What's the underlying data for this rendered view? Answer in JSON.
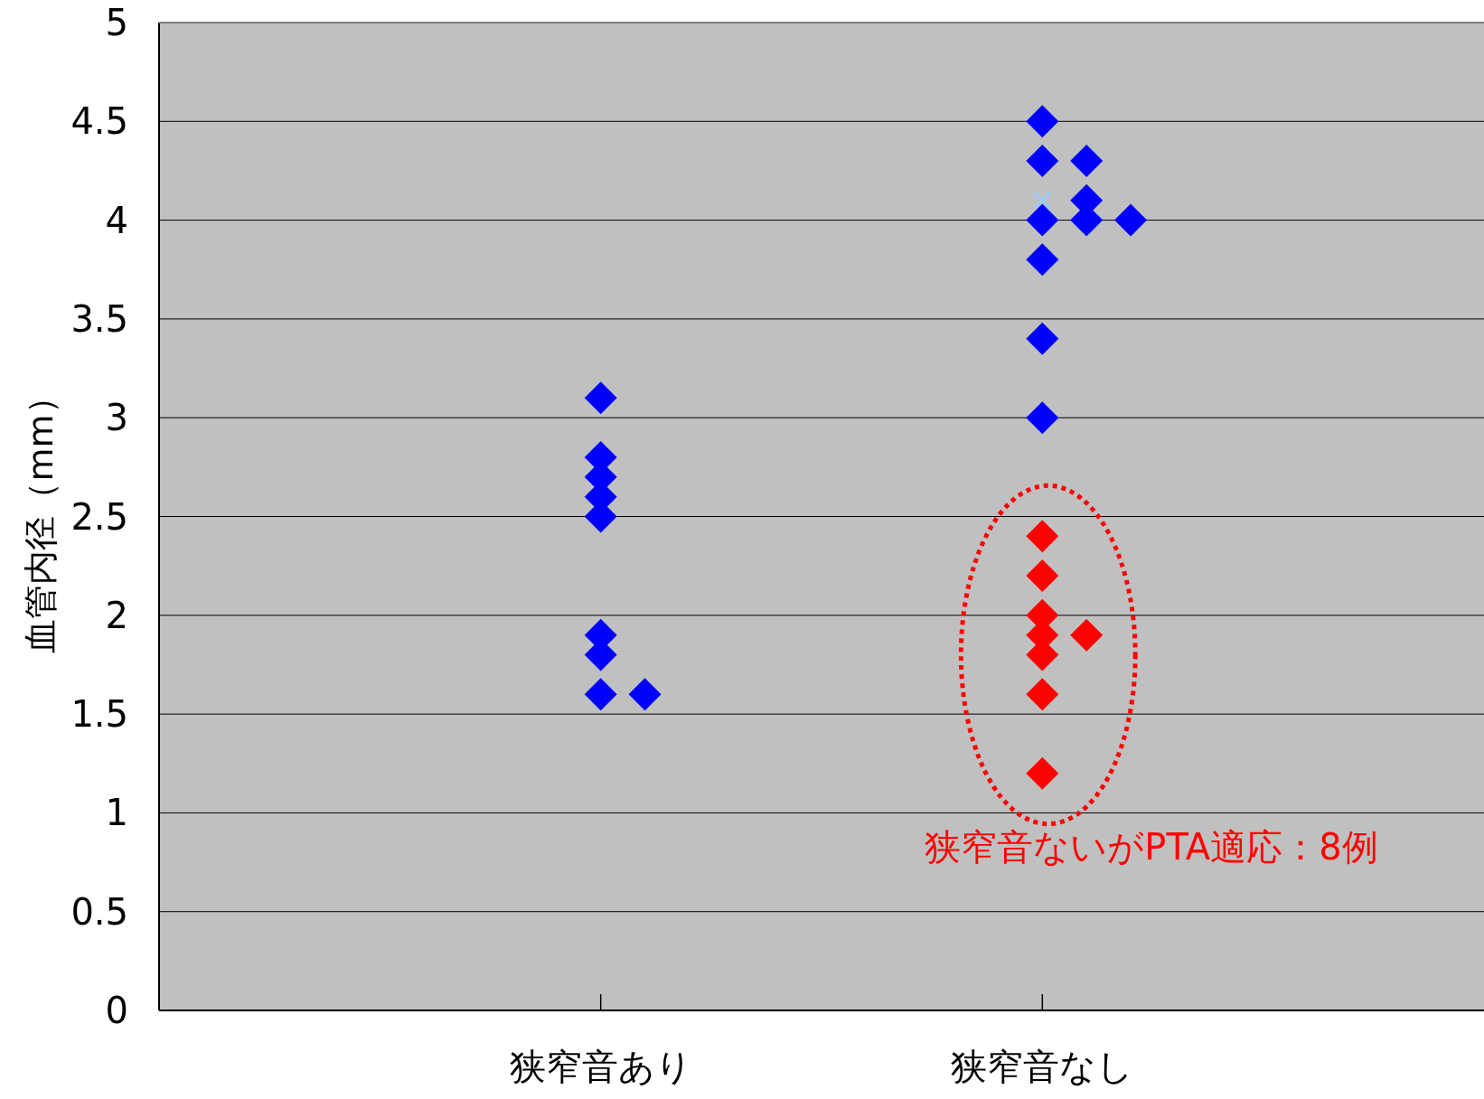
{
  "chart_data": {
    "type": "scatter",
    "ylabel": "血管内径（mm）",
    "categories": [
      "狭窄音あり",
      "狭窄音なし"
    ],
    "ylim": [
      0,
      5
    ],
    "yticks": [
      0,
      0.5,
      1,
      1.5,
      2,
      2.5,
      3,
      3.5,
      4,
      4.5,
      5
    ],
    "grid": "y",
    "marker": "diamond",
    "series": [
      {
        "color": "#99ccff",
        "marker": "cross",
        "x": [
          "狭窄音なし"
        ],
        "values": [
          4.1
        ]
      },
      {
        "color": "#0000ff",
        "x": [
          "狭窄音あり",
          "狭窄音あり",
          "狭窄音あり",
          "狭窄音あり",
          "狭窄音あり",
          "狭窄音あり",
          "狭窄音あり",
          "狭窄音あり",
          "狭窄音あり",
          "狭窄音なし",
          "狭窄音なし",
          "狭窄音なし",
          "狭窄音なし",
          "狭窄音なし",
          "狭窄音なし",
          "狭窄音なし",
          "狭窄音なし",
          "狭窄音なし",
          "狭窄音なし"
        ],
        "values": [
          3.1,
          2.8,
          2.7,
          2.6,
          2.5,
          1.9,
          1.8,
          1.6,
          1.6,
          4.5,
          4.3,
          4.3,
          4.1,
          4.0,
          4.0,
          4.0,
          3.8,
          3.4,
          3.0
        ]
      },
      {
        "color": "#ff0000",
        "x": [
          "狭窄音なし",
          "狭窄音なし",
          "狭窄音なし",
          "狭窄音なし",
          "狭窄音なし",
          "狭窄音なし",
          "狭窄音なし",
          "狭窄音なし"
        ],
        "values": [
          2.4,
          2.2,
          2.0,
          1.9,
          1.8,
          1.6,
          1.2,
          1.9
        ]
      }
    ],
    "annotations": [
      "狭窄音ないがPTA適応：8例"
    ]
  }
}
